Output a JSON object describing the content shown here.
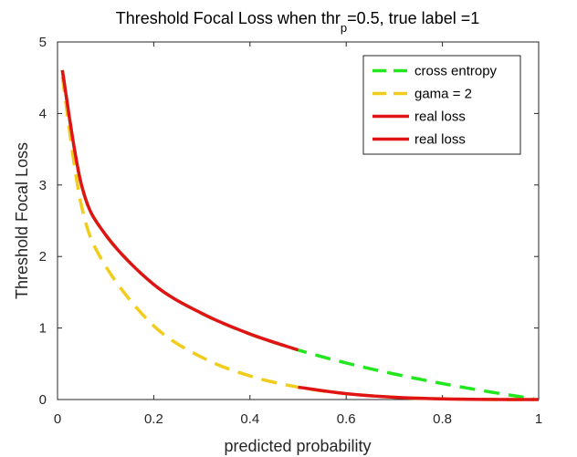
{
  "chart_data": {
    "type": "line",
    "title": "Threshold Focal Loss when thr =0.5, true label =1",
    "title_parts": {
      "main": "Threshold Focal Loss when thr",
      "subscript": "p",
      "rest": "=0.5, true label =1"
    },
    "xlabel": "predicted probability",
    "ylabel": "Threshold Focal Loss",
    "xlim": [
      0,
      1
    ],
    "ylim": [
      0,
      5
    ],
    "xticks": [
      0,
      0.2,
      0.4,
      0.6,
      0.8,
      1
    ],
    "xtick_labels": [
      "0",
      "0.2",
      "0.4",
      "0.6",
      "0.8",
      "1"
    ],
    "yticks": [
      0,
      1,
      2,
      3,
      4,
      5
    ],
    "ytick_labels": [
      "0",
      "1",
      "2",
      "3",
      "4",
      "5"
    ],
    "grid": false,
    "legend_position": "top-right",
    "series": [
      {
        "name": "cross entropy",
        "color": "#22e61e",
        "style": "dashed",
        "x": [
          0.01,
          0.05,
          0.1,
          0.2,
          0.3,
          0.4,
          0.5,
          0.6,
          0.7,
          0.8,
          0.9,
          0.99
        ],
        "y": [
          4.605,
          2.996,
          2.303,
          1.609,
          1.204,
          0.916,
          0.693,
          0.511,
          0.357,
          0.223,
          0.105,
          0.01
        ]
      },
      {
        "name": "gama = 2",
        "color": "#f2cc1a",
        "style": "dashed",
        "x": [
          0.01,
          0.05,
          0.1,
          0.2,
          0.3,
          0.4,
          0.5,
          0.6,
          0.7,
          0.8,
          0.9,
          0.99
        ],
        "y": [
          4.514,
          2.704,
          1.865,
          1.03,
          0.59,
          0.33,
          0.173,
          0.082,
          0.032,
          0.009,
          0.001,
          0.0
        ]
      },
      {
        "name": "real loss",
        "color": "#e01414",
        "style": "solid",
        "x": [
          0.01,
          0.05,
          0.1,
          0.2,
          0.3,
          0.4,
          0.5
        ],
        "y": [
          4.605,
          2.996,
          2.303,
          1.609,
          1.204,
          0.916,
          0.693
        ]
      },
      {
        "name": "real loss",
        "color": "#e01414",
        "style": "solid",
        "x": [
          0.5,
          0.6,
          0.7,
          0.8,
          0.9,
          1.0
        ],
        "y": [
          0.173,
          0.082,
          0.032,
          0.009,
          0.001,
          0.0
        ]
      }
    ]
  }
}
